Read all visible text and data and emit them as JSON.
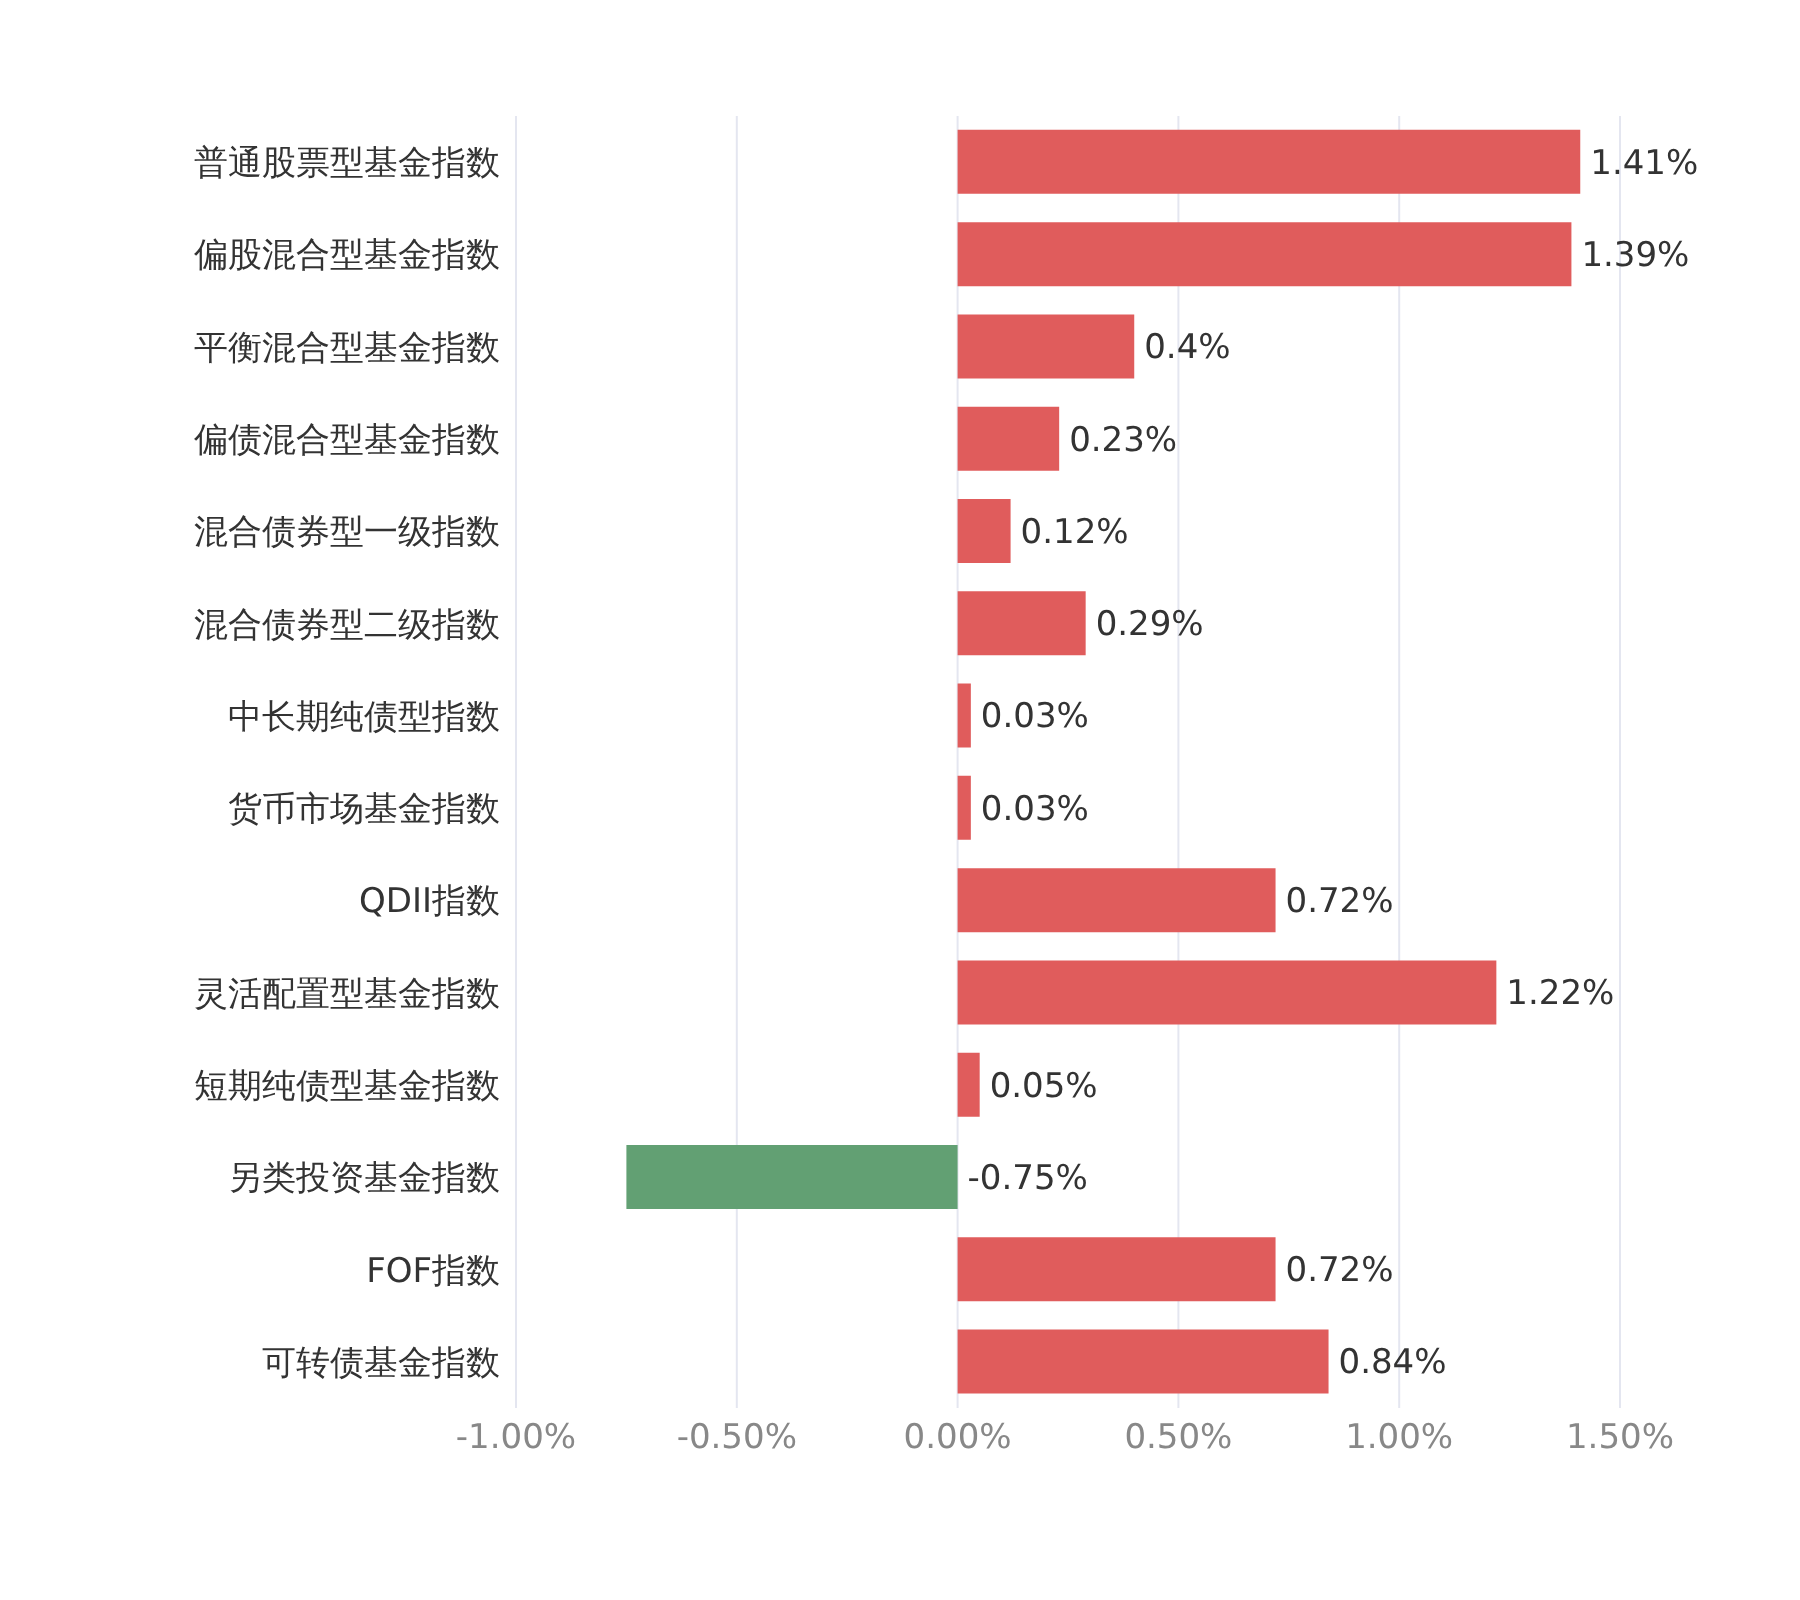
{
  "chart_data": {
    "type": "bar",
    "orientation": "horizontal",
    "categories": [
      "普通股票型基金指数",
      "偏股混合型基金指数",
      "平衡混合型基金指数",
      "偏债混合型基金指数",
      "混合债券型一级指数",
      "混合债券型二级指数",
      "中长期纯债型指数",
      "货币市场基金指数",
      "QDII指数",
      "灵活配置型基金指数",
      "短期纯债型基金指数",
      "另类投资基金指数",
      "FOF指数",
      "可转债基金指数"
    ],
    "values": [
      1.41,
      1.39,
      0.4,
      0.23,
      0.12,
      0.29,
      0.03,
      0.03,
      0.72,
      1.22,
      0.05,
      -0.75,
      0.72,
      0.84
    ],
    "colors": [
      "#e05c5c",
      "#e05c5c",
      "#e05c5c",
      "#e05c5c",
      "#e05c5c",
      "#e05c5c",
      "#e05c5c",
      "#e05c5c",
      "#e05c5c",
      "#e05c5c",
      "#e05c5c",
      "#62a073",
      "#e05c5c",
      "#e05c5c"
    ],
    "value_labels": [
      "1.41%",
      "1.39%",
      "0.4%",
      "0.23%",
      "0.12%",
      "0.29%",
      "0.03%",
      "0.03%",
      "0.72%",
      "1.22%",
      "0.05%",
      "-0.75%",
      "0.72%",
      "0.84%"
    ],
    "xlim": [
      -1,
      1.5
    ],
    "xticks": [
      {
        "value": -1,
        "label": "-1.00%"
      },
      {
        "value": -0.5,
        "label": "-0.50%"
      },
      {
        "value": 0,
        "label": "0.00%"
      },
      {
        "value": 0.5,
        "label": "0.50%"
      },
      {
        "value": 1,
        "label": "1.00%"
      },
      {
        "value": 1.5,
        "label": "1.50%"
      }
    ],
    "grid": "x"
  }
}
